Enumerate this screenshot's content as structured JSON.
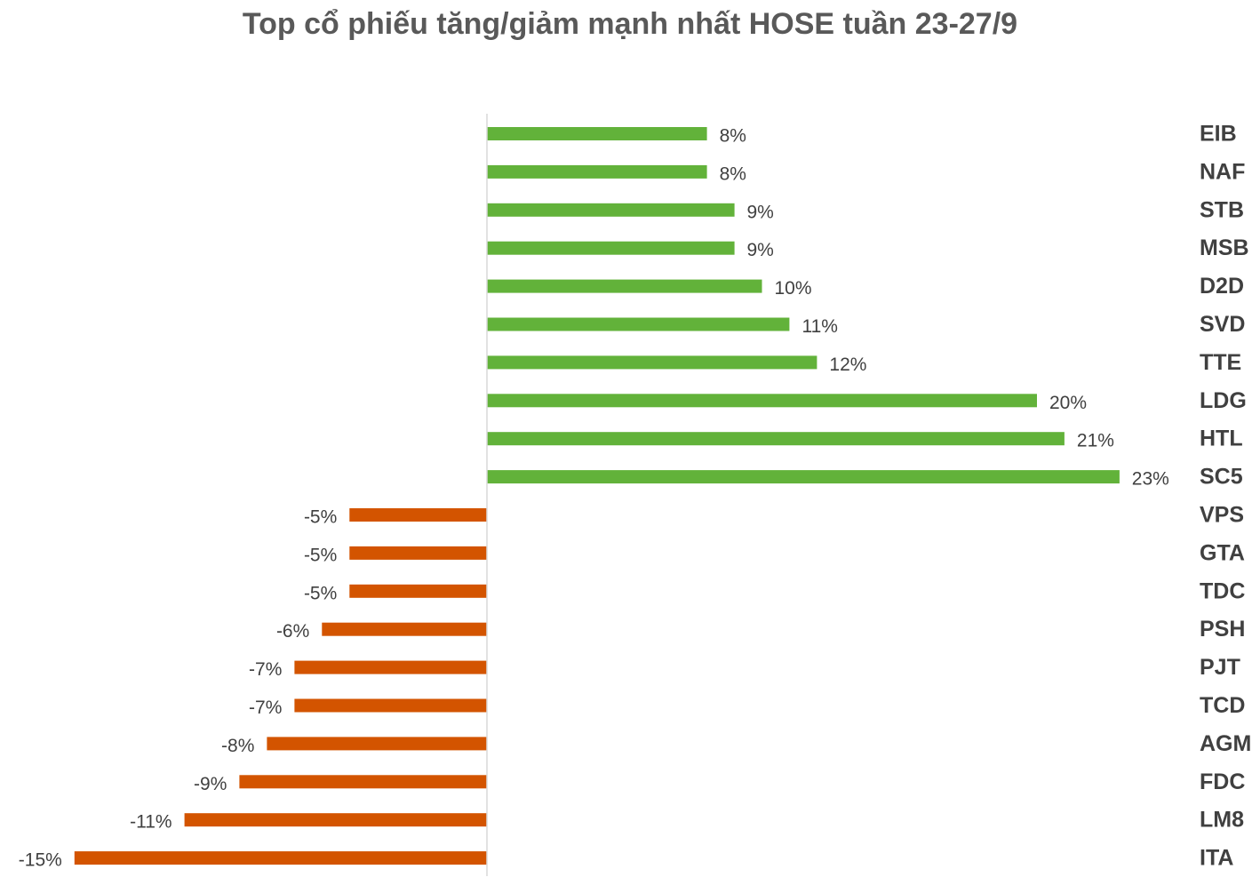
{
  "chart_data": {
    "type": "bar",
    "orientation": "horizontal",
    "title": "Top cổ phiếu tăng/giảm mạnh nhất HOSE tuần 23-27/9",
    "xlabel": "",
    "ylabel": "",
    "categories": [
      "EIB",
      "NAF",
      "STB",
      "MSB",
      "D2D",
      "SVD",
      "TTE",
      "LDG",
      "HTL",
      "SC5",
      "VPS",
      "GTA",
      "TDC",
      "PSH",
      "PJT",
      "TCD",
      "AGM",
      "FDC",
      "LM8",
      "ITA"
    ],
    "values": [
      8,
      8,
      9,
      9,
      10,
      11,
      12,
      20,
      21,
      23,
      -5,
      -5,
      -5,
      -6,
      -7,
      -7,
      -8,
      -9,
      -11,
      -15
    ],
    "value_labels": [
      "8%",
      "8%",
      "9%",
      "9%",
      "10%",
      "11%",
      "12%",
      "20%",
      "21%",
      "23%",
      "-5%",
      "-5%",
      "-5%",
      "-6%",
      "-7%",
      "-7%",
      "-8%",
      "-9%",
      "-11%",
      "-15%"
    ],
    "unit": "%",
    "xlim": [
      -15,
      23
    ],
    "grid": false,
    "legend": "none",
    "colors": {
      "positive": "#62B23A",
      "negative": "#D35400",
      "axis": "#D9D9D9",
      "title": "#595959",
      "labels": "#404040"
    }
  }
}
